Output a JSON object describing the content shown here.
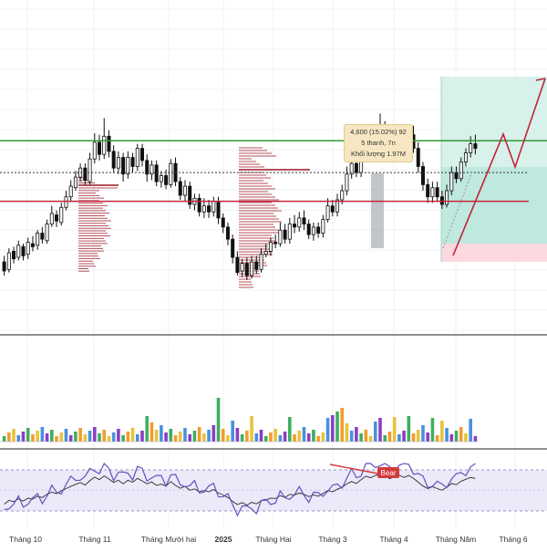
{
  "chart_data": {
    "type": "candlestick",
    "x_axis": {
      "tick_labels": [
        "Tháng 10",
        "Tháng 11",
        "Tháng Mười hai",
        "2025",
        "Tháng Hai",
        "Tháng 3",
        "Tháng 4",
        "Tháng Năm",
        "Tháng 6"
      ]
    },
    "price": {
      "series": [
        [
          0,
          247,
          241,
          251,
          238
        ],
        [
          1,
          242,
          253,
          256,
          240
        ],
        [
          2,
          254,
          249,
          257,
          246
        ],
        [
          3,
          250,
          258,
          261,
          248
        ],
        [
          4,
          257,
          251,
          259,
          248
        ],
        [
          5,
          252,
          260,
          263,
          249
        ],
        [
          6,
          259,
          257,
          264,
          254
        ],
        [
          7,
          258,
          266,
          268,
          255
        ],
        [
          8,
          266,
          262,
          270,
          259
        ],
        [
          9,
          261,
          272,
          275,
          259
        ],
        [
          10,
          272,
          279,
          284,
          270
        ],
        [
          11,
          278,
          274,
          281,
          270
        ],
        [
          12,
          273,
          283,
          286,
          271
        ],
        [
          13,
          283,
          290,
          294,
          281
        ],
        [
          14,
          290,
          297,
          301,
          287
        ],
        [
          15,
          296,
          303,
          307,
          294
        ],
        [
          16,
          303,
          309,
          312,
          300
        ],
        [
          17,
          309,
          301,
          312,
          298
        ],
        [
          18,
          300,
          315,
          319,
          298
        ],
        [
          19,
          315,
          326,
          332,
          312
        ],
        [
          20,
          326,
          318,
          331,
          314
        ],
        [
          21,
          318,
          330,
          342,
          315
        ],
        [
          22,
          330,
          320,
          334,
          316
        ],
        [
          23,
          320,
          309,
          324,
          306
        ],
        [
          24,
          309,
          316,
          320,
          305
        ],
        [
          25,
          316,
          305,
          319,
          300
        ],
        [
          26,
          305,
          316,
          320,
          302
        ],
        [
          27,
          316,
          310,
          319,
          306
        ],
        [
          28,
          310,
          322,
          325,
          307
        ],
        [
          29,
          322,
          314,
          325,
          310
        ],
        [
          30,
          314,
          305,
          318,
          300
        ],
        [
          31,
          305,
          311,
          314,
          301
        ],
        [
          32,
          311,
          300,
          314,
          297
        ],
        [
          33,
          300,
          304,
          307,
          296
        ],
        [
          34,
          304,
          298,
          308,
          295
        ],
        [
          35,
          298,
          312,
          315,
          296
        ],
        [
          36,
          312,
          300,
          316,
          297
        ],
        [
          37,
          300,
          291,
          303,
          288
        ],
        [
          38,
          291,
          297,
          301,
          287
        ],
        [
          39,
          297,
          285,
          300,
          282
        ],
        [
          40,
          285,
          289,
          292,
          281
        ],
        [
          41,
          289,
          280,
          292,
          277
        ],
        [
          42,
          280,
          284,
          289,
          276
        ],
        [
          43,
          284,
          280,
          288,
          276
        ],
        [
          44,
          280,
          287,
          290,
          277
        ],
        [
          45,
          287,
          276,
          290,
          272
        ],
        [
          46,
          276,
          270,
          279,
          266
        ],
        [
          47,
          270,
          262,
          273,
          258
        ],
        [
          48,
          262,
          250,
          265,
          246
        ],
        [
          49,
          250,
          240,
          254,
          238
        ],
        [
          50,
          241,
          246,
          249,
          237
        ],
        [
          51,
          246,
          238,
          250,
          235
        ],
        [
          52,
          238,
          247,
          251,
          236
        ],
        [
          53,
          247,
          242,
          251,
          239
        ],
        [
          54,
          242,
          252,
          256,
          240
        ],
        [
          55,
          252,
          254,
          259,
          250
        ],
        [
          56,
          254,
          260,
          263,
          251
        ],
        [
          57,
          260,
          259,
          265,
          256
        ],
        [
          58,
          259,
          268,
          273,
          257
        ],
        [
          59,
          268,
          262,
          272,
          259
        ],
        [
          60,
          262,
          272,
          276,
          259
        ],
        [
          61,
          272,
          270,
          278,
          266
        ],
        [
          62,
          270,
          276,
          280,
          267
        ],
        [
          63,
          276,
          272,
          281,
          268
        ],
        [
          64,
          272,
          265,
          275,
          262
        ],
        [
          65,
          265,
          270,
          273,
          261
        ],
        [
          66,
          270,
          266,
          273,
          263
        ],
        [
          67,
          266,
          275,
          278,
          263
        ],
        [
          68,
          275,
          284,
          289,
          273
        ],
        [
          69,
          284,
          280,
          288,
          277
        ],
        [
          70,
          280,
          288,
          292,
          277
        ],
        [
          71,
          288,
          294,
          298,
          285
        ],
        [
          72,
          294,
          305,
          310,
          291
        ],
        [
          73,
          305,
          312,
          318,
          302
        ],
        [
          74,
          312,
          306,
          317,
          303
        ],
        [
          75,
          306,
          318,
          322,
          303
        ],
        [
          76,
          318,
          329,
          334,
          315
        ],
        [
          77,
          329,
          324,
          336,
          320
        ],
        [
          78,
          324,
          331,
          335,
          320
        ],
        [
          79,
          331,
          336,
          345,
          327
        ],
        [
          80,
          336,
          330,
          340,
          327
        ],
        [
          81,
          330,
          321,
          333,
          317
        ],
        [
          82,
          321,
          327,
          331,
          318
        ],
        [
          83,
          327,
          332,
          336,
          324
        ],
        [
          84,
          332,
          325,
          336,
          322
        ],
        [
          85,
          325,
          331,
          337,
          322
        ],
        [
          86,
          331,
          322,
          337,
          319
        ],
        [
          87,
          322,
          310,
          326,
          306
        ],
        [
          88,
          310,
          298,
          313,
          294
        ],
        [
          89,
          298,
          290,
          302,
          286
        ],
        [
          90,
          290,
          296,
          300,
          286
        ],
        [
          91,
          296,
          290,
          300,
          287
        ],
        [
          92,
          290,
          285,
          294,
          282
        ],
        [
          93,
          285,
          294,
          298,
          283
        ],
        [
          94,
          294,
          306,
          310,
          291
        ],
        [
          95,
          306,
          302,
          310,
          299
        ],
        [
          96,
          302,
          313,
          316,
          300
        ],
        [
          97,
          313,
          319,
          322,
          310
        ],
        [
          98,
          319,
          325,
          330,
          316
        ],
        [
          99,
          325,
          322,
          331,
          318
        ]
      ],
      "price_line_green": 327,
      "price_line_red": 287,
      "price_line_dotted": 306
    },
    "annotations": {
      "info_line1": "4,600 (15.02%) 92",
      "info_line2": "5 thanh, 7n",
      "info_line3": "Khối lượng 1.97M",
      "rsi_label": "Bear"
    }
  }
}
